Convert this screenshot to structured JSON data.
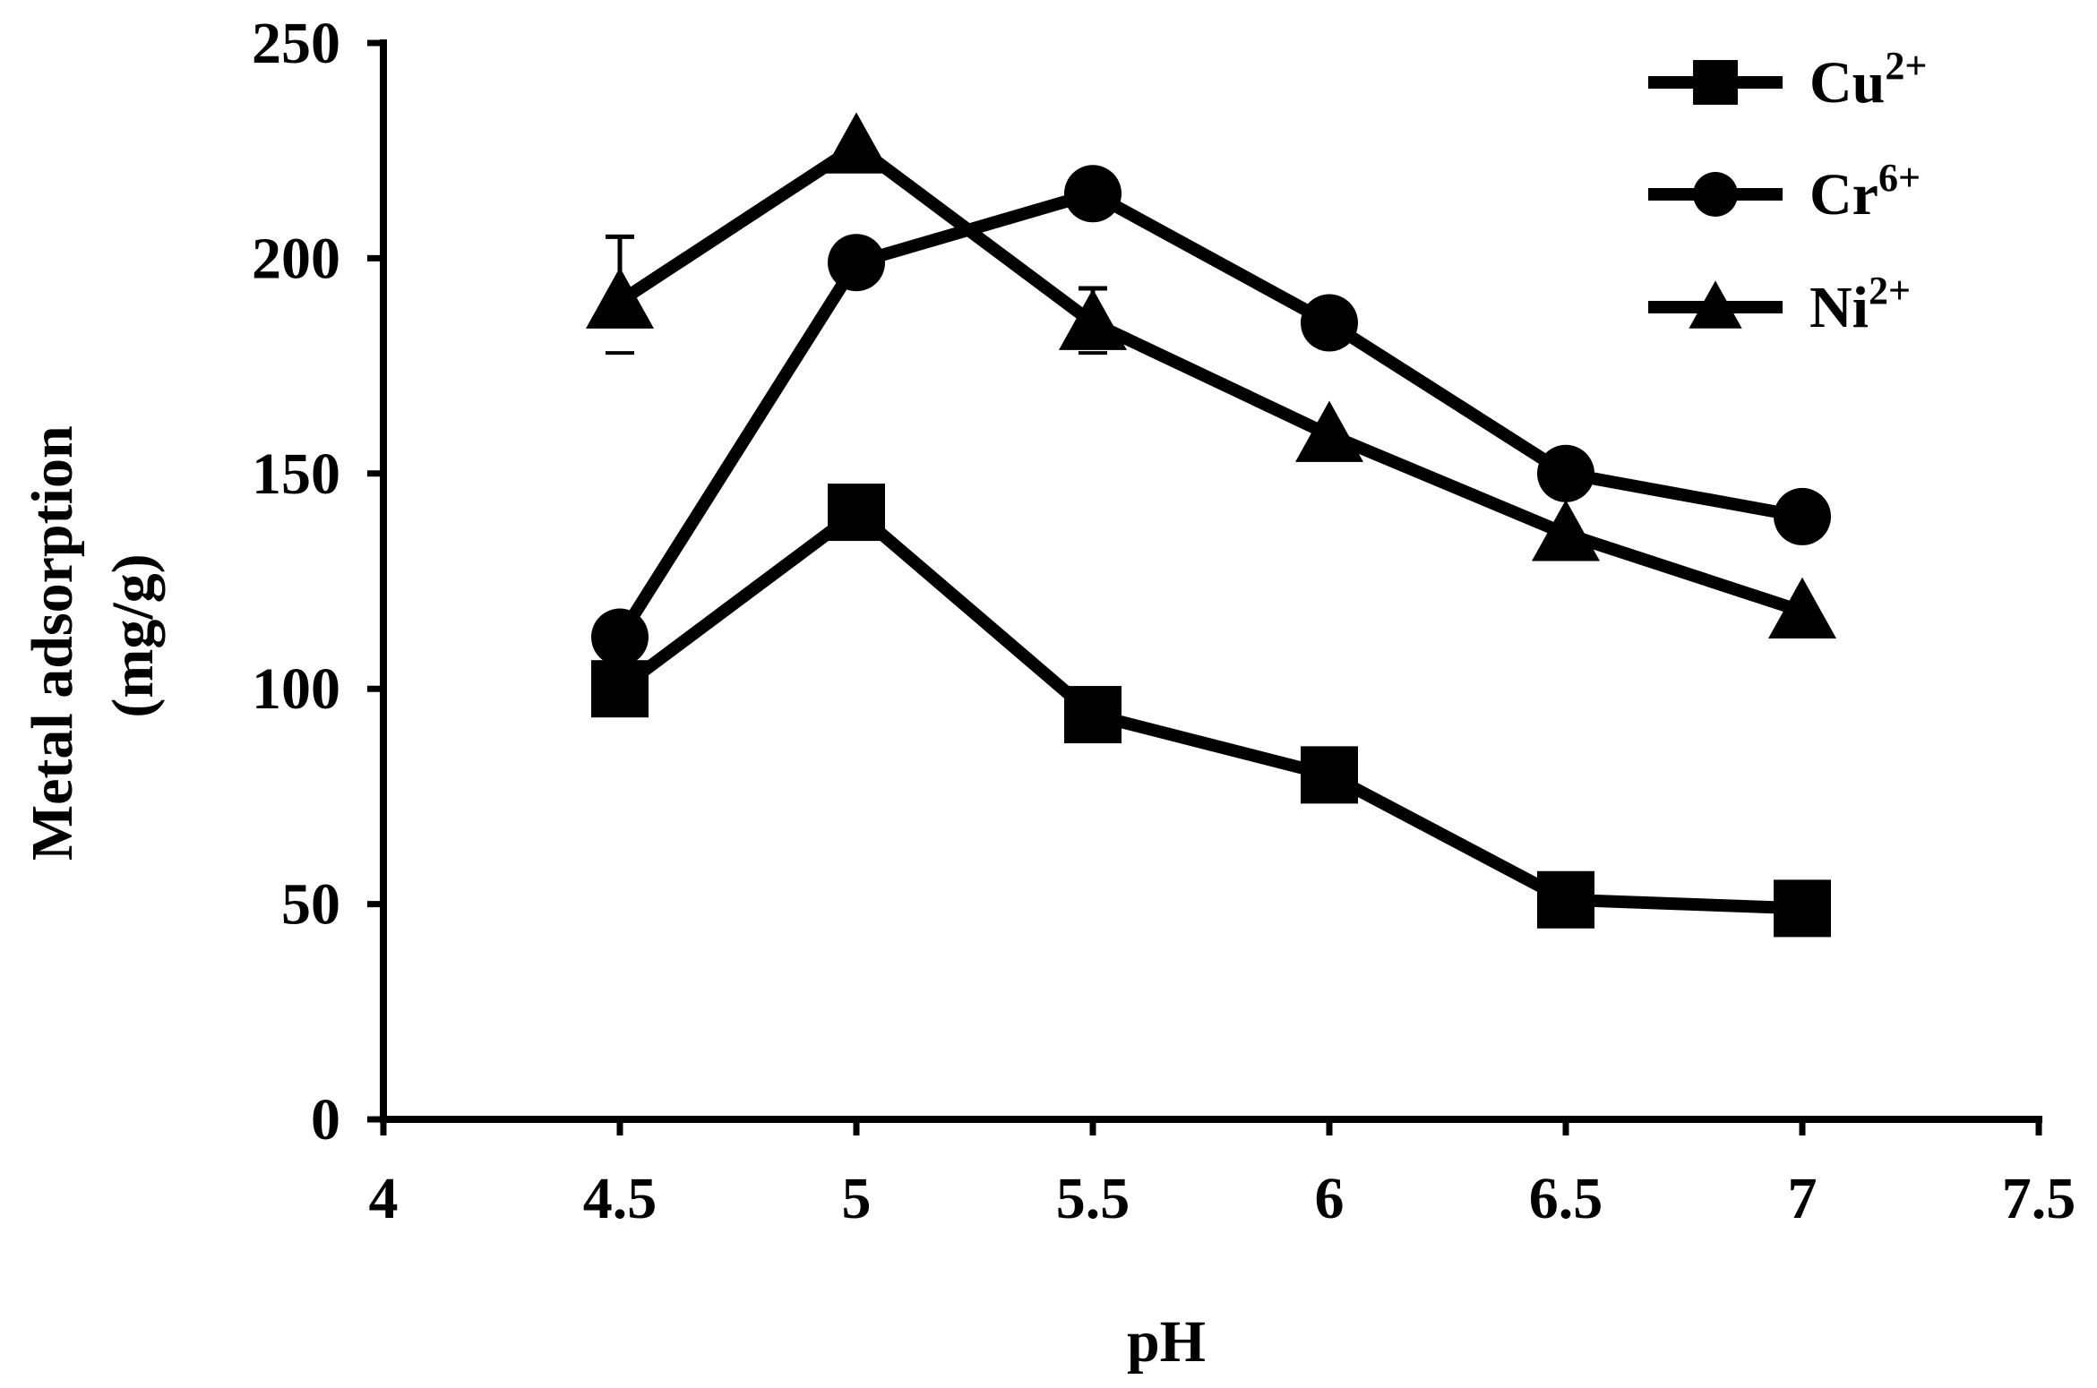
{
  "chart_data": {
    "type": "line",
    "xlabel": "pH",
    "ylabel": [
      "Metal adsorption",
      "(mg/g)"
    ],
    "xlim": [
      4,
      7.5
    ],
    "ylim": [
      0,
      250
    ],
    "xticks": [
      4,
      4.5,
      5,
      5.5,
      6,
      6.5,
      7,
      7.5
    ],
    "yticks": [
      0,
      50,
      100,
      150,
      200,
      250
    ],
    "xtick_labels": [
      "4",
      "4.5",
      "5",
      "5.5",
      "6",
      "6.5",
      "7",
      "7.5"
    ],
    "ytick_labels": [
      "0",
      "50",
      "100",
      "150",
      "200",
      "250"
    ],
    "grid": false,
    "legend_position": "top-right",
    "series": [
      {
        "name": "Cu²⁺",
        "base": "Cu",
        "sup": "2+",
        "marker": "square",
        "color": "#000000",
        "x": [
          4.5,
          5,
          5.5,
          6,
          6.5,
          7
        ],
        "values": [
          100,
          141,
          94,
          80,
          51,
          49
        ]
      },
      {
        "name": "Cr⁶⁺",
        "base": "Cr",
        "sup": "6+",
        "marker": "circle",
        "color": "#000000",
        "x": [
          4.5,
          5,
          5.5,
          6,
          6.5,
          7
        ],
        "values": [
          112,
          199,
          215,
          185,
          150,
          140
        ]
      },
      {
        "name": "Ni²⁺",
        "base": "Ni",
        "sup": "2+",
        "marker": "triangle",
        "color": "#000000",
        "x": [
          4.5,
          5,
          5.5,
          6,
          6.5,
          7
        ],
        "values": [
          190,
          226,
          185,
          159,
          136,
          118
        ],
        "error_bars": [
          {
            "x": 4.5,
            "upper": 205,
            "lower": 178
          },
          {
            "x": 5.5,
            "upper": 193,
            "lower": 178
          }
        ]
      }
    ]
  }
}
